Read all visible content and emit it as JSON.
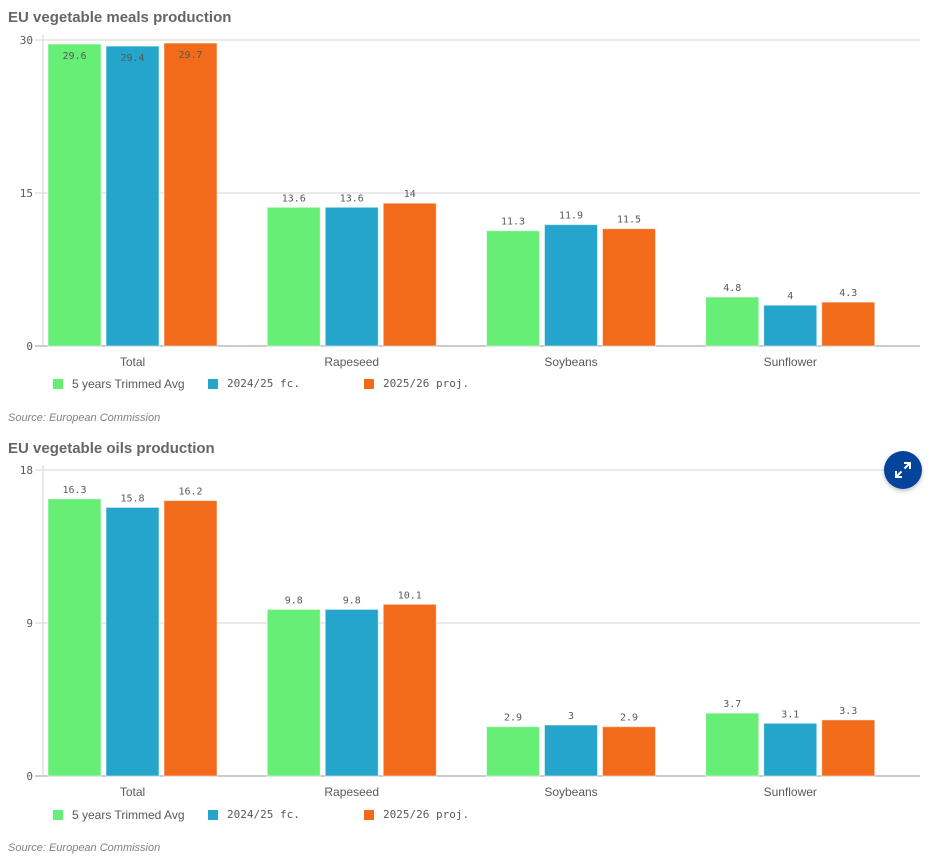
{
  "colors": {
    "series1": "#66ee77",
    "series2": "#25a5cc",
    "series3": "#f16b1a",
    "grid": "#d6d6d6",
    "axis": "#999999",
    "expand_button": "#05449a"
  },
  "expand_button": {
    "icon": "expand-arrows-icon"
  },
  "chart_data": [
    {
      "type": "bar",
      "title": "EU vegetable meals production",
      "source": "Source: European Commission",
      "categories": [
        "Total",
        "Rapeseed",
        "Soybeans",
        "Sunflower"
      ],
      "series": [
        {
          "name": "5 years Trimmed Avg",
          "values": [
            29.6,
            13.6,
            11.3,
            4.8
          ]
        },
        {
          "name": "2024/25 fc.",
          "values": [
            29.4,
            13.6,
            11.9,
            4
          ]
        },
        {
          "name": "2025/26 proj.",
          "values": [
            29.7,
            14,
            11.5,
            4.3
          ]
        }
      ],
      "yticks": [
        "0",
        "15",
        "30"
      ],
      "ylim": [
        0,
        30
      ],
      "xlabel": "",
      "ylabel": "",
      "grid": true,
      "legend_position": "bottom"
    },
    {
      "type": "bar",
      "title": "EU vegetable oils production",
      "source": "Source: European Commission",
      "categories": [
        "Total",
        "Rapeseed",
        "Soybeans",
        "Sunflower"
      ],
      "series": [
        {
          "name": "5 years Trimmed Avg",
          "values": [
            16.3,
            9.8,
            2.9,
            3.7
          ]
        },
        {
          "name": "2024/25 fc.",
          "values": [
            15.8,
            9.8,
            3,
            3.1
          ]
        },
        {
          "name": "2025/26 proj.",
          "values": [
            16.2,
            10.1,
            2.9,
            3.3
          ]
        }
      ],
      "yticks": [
        "0",
        "9",
        "18"
      ],
      "ylim": [
        0,
        18
      ],
      "xlabel": "",
      "ylabel": "",
      "grid": true,
      "legend_position": "bottom"
    }
  ]
}
